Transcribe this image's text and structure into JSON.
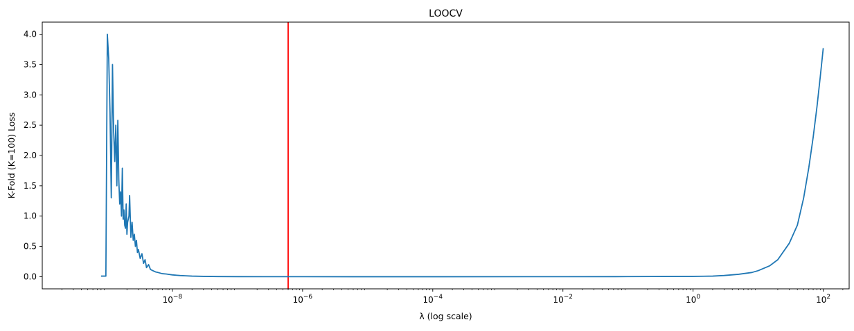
{
  "chart_data": {
    "type": "line",
    "title": "LOOCV",
    "xlabel": "λ (log scale)",
    "ylabel": "K-Fold (K=100) Loss",
    "xscale": "log",
    "xlim": [
      1e-10,
      250
    ],
    "ylim": [
      -0.2,
      4.2
    ],
    "grid": false,
    "line_color": "#1f77b4",
    "vline_color": "#ff0000",
    "vline_x": 6e-07,
    "x_ticks": [
      {
        "value": 1e-08,
        "base": "10",
        "exp": "−8"
      },
      {
        "value": 1e-06,
        "base": "10",
        "exp": "−6"
      },
      {
        "value": 0.0001,
        "base": "10",
        "exp": "−4"
      },
      {
        "value": 0.01,
        "base": "10",
        "exp": "−2"
      },
      {
        "value": 1,
        "base": "10",
        "exp": "0"
      },
      {
        "value": 100,
        "base": "10",
        "exp": "2"
      }
    ],
    "y_ticks": [
      {
        "value": 0.0,
        "label": "0.0"
      },
      {
        "value": 0.5,
        "label": "0.5"
      },
      {
        "value": 1.0,
        "label": "1.0"
      },
      {
        "value": 1.5,
        "label": "1.5"
      },
      {
        "value": 2.0,
        "label": "2.0"
      },
      {
        "value": 2.5,
        "label": "2.5"
      },
      {
        "value": 3.0,
        "label": "3.0"
      },
      {
        "value": 3.5,
        "label": "3.5"
      },
      {
        "value": 4.0,
        "label": "4.0"
      }
    ],
    "series": [
      {
        "points": [
          [
            8e-10,
            0.01
          ],
          [
            9.5e-10,
            0.01
          ],
          [
            1e-09,
            4.0
          ],
          [
            1.05e-09,
            3.6
          ],
          [
            1.1e-09,
            2.7
          ],
          [
            1.15e-09,
            1.3
          ],
          [
            1.2e-09,
            3.5
          ],
          [
            1.25e-09,
            2.4
          ],
          [
            1.3e-09,
            1.9
          ],
          [
            1.35e-09,
            2.5
          ],
          [
            1.4e-09,
            1.5
          ],
          [
            1.45e-09,
            2.58
          ],
          [
            1.5e-09,
            1.6
          ],
          [
            1.55e-09,
            1.2
          ],
          [
            1.6e-09,
            1.4
          ],
          [
            1.65e-09,
            1.0
          ],
          [
            1.7e-09,
            1.79
          ],
          [
            1.75e-09,
            0.95
          ],
          [
            1.8e-09,
            1.1
          ],
          [
            1.85e-09,
            0.85
          ],
          [
            1.9e-09,
            0.8
          ],
          [
            1.95e-09,
            1.2
          ],
          [
            2e-09,
            0.7
          ],
          [
            2.05e-09,
            0.9
          ],
          [
            2.15e-09,
            1.0
          ],
          [
            2.2e-09,
            1.34
          ],
          [
            2.3e-09,
            0.65
          ],
          [
            2.4e-09,
            0.9
          ],
          [
            2.5e-09,
            0.6
          ],
          [
            2.6e-09,
            0.7
          ],
          [
            2.7e-09,
            0.5
          ],
          [
            2.8e-09,
            0.6
          ],
          [
            2.9e-09,
            0.4
          ],
          [
            3e-09,
            0.45
          ],
          [
            3.2e-09,
            0.3
          ],
          [
            3.4e-09,
            0.38
          ],
          [
            3.6e-09,
            0.22
          ],
          [
            3.8e-09,
            0.28
          ],
          [
            4e-09,
            0.15
          ],
          [
            4.3e-09,
            0.2
          ],
          [
            4.6e-09,
            0.12
          ],
          [
            5e-09,
            0.1
          ],
          [
            5.5e-09,
            0.08
          ],
          [
            6e-09,
            0.07
          ],
          [
            7e-09,
            0.05
          ],
          [
            8e-09,
            0.045
          ],
          [
            1e-08,
            0.03
          ],
          [
            1.3e-08,
            0.02
          ],
          [
            1.6e-08,
            0.015
          ],
          [
            2e-08,
            0.01
          ],
          [
            3e-08,
            0.006
          ],
          [
            5e-08,
            0.003
          ],
          [
            1e-07,
            0.0015
          ],
          [
            1e-06,
            0.0005
          ],
          [
            0.0001,
            0.0003
          ],
          [
            0.01,
            0.0006
          ],
          [
            0.1,
            0.002
          ],
          [
            1,
            0.006
          ],
          [
            2,
            0.01
          ],
          [
            3,
            0.02
          ],
          [
            5,
            0.04
          ],
          [
            8,
            0.07
          ],
          [
            10,
            0.1
          ],
          [
            15,
            0.18
          ],
          [
            20,
            0.28
          ],
          [
            30,
            0.55
          ],
          [
            40,
            0.85
          ],
          [
            50,
            1.3
          ],
          [
            60,
            1.8
          ],
          [
            70,
            2.3
          ],
          [
            80,
            2.8
          ],
          [
            90,
            3.3
          ],
          [
            100,
            3.77
          ]
        ]
      }
    ]
  }
}
